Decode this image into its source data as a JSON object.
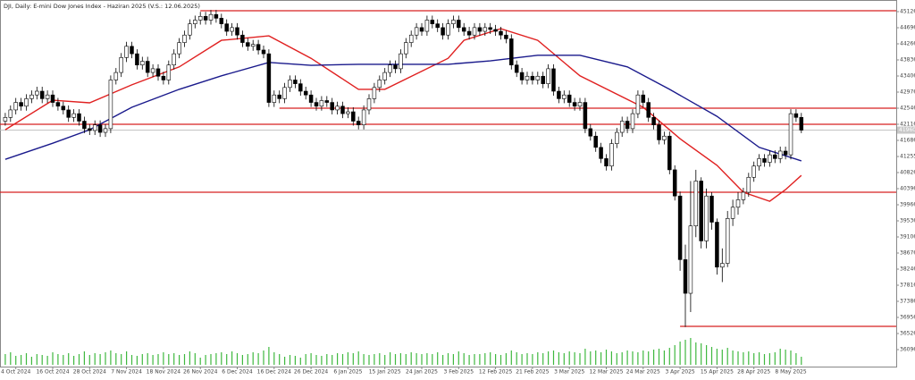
{
  "chart_data": {
    "type": "candlestick",
    "title": "DJI, Daily:  E-mini Dow Jones Index  - Haziran 2025 (V.S.: 12.06.2025)",
    "xlim": [
      -1,
      169
    ],
    "xticks": [
      {
        "value": 2,
        "label": "4 Oct 2024"
      },
      {
        "value": 9,
        "label": "16 Oct 2024"
      },
      {
        "value": 16,
        "label": "28 Oct 2024"
      },
      {
        "value": 23,
        "label": "7 Nov 2024"
      },
      {
        "value": 30,
        "label": "18 Nov 2024"
      },
      {
        "value": 37,
        "label": "26 Nov 2024"
      },
      {
        "value": 44,
        "label": "6 Dec 2024"
      },
      {
        "value": 51,
        "label": "16 Dec 2024"
      },
      {
        "value": 58,
        "label": "26 Dec 2024"
      },
      {
        "value": 65,
        "label": "6 Jan 2025"
      },
      {
        "value": 72,
        "label": "15 Jan 2025"
      },
      {
        "value": 79,
        "label": "24 Jan 2025"
      },
      {
        "value": 86,
        "label": "3 Feb 2025"
      },
      {
        "value": 93,
        "label": "12 Feb 2025"
      },
      {
        "value": 100,
        "label": "21 Feb 2025"
      },
      {
        "value": 107,
        "label": "3 Mar 2025"
      },
      {
        "value": 114,
        "label": "12 Mar 2025"
      },
      {
        "value": 121,
        "label": "24 Mar 2025"
      },
      {
        "value": 128,
        "label": "3 Apr 2025"
      },
      {
        "value": 135,
        "label": "15 Apr 2025"
      },
      {
        "value": 142,
        "label": "28 Apr 2025"
      },
      {
        "value": 149,
        "label": "8 May 2025"
      }
    ],
    "ylim": [
      35642,
      45437
    ],
    "yticks": [
      45126,
      44696,
      44266,
      43836,
      43406,
      42976,
      42546,
      42116,
      41686,
      41255,
      40826,
      40396,
      39966,
      39536,
      39106,
      38676,
      38246,
      37816,
      37386,
      36956,
      36526,
      36096
    ],
    "open": [
      42200,
      42300,
      42500,
      42700,
      42600,
      42800,
      42900,
      43000,
      42800,
      42900,
      42700,
      42600,
      42500,
      42300,
      42400,
      42200,
      42000,
      41950,
      42100,
      41900,
      42000,
      43300,
      43500,
      43900,
      44200,
      44000,
      43700,
      43800,
      43500,
      43600,
      43400,
      43300,
      43700,
      44000,
      44300,
      44500,
      44800,
      44900,
      45000,
      44900,
      45050,
      44950,
      44800,
      44600,
      44700,
      44500,
      44300,
      44200,
      44250,
      44100,
      44000,
      42700,
      42900,
      42800,
      43100,
      43300,
      43200,
      43000,
      42900,
      42700,
      42600,
      42750,
      42700,
      42500,
      42600,
      42400,
      42450,
      42200,
      42100,
      42500,
      42800,
      43100,
      43300,
      43500,
      43700,
      43600,
      44000,
      44300,
      44500,
      44700,
      44600,
      44900,
      44800,
      44700,
      44500,
      44800,
      44900,
      44700,
      44600,
      44500,
      44700,
      44600,
      44700,
      44650,
      44600,
      44500,
      44400,
      43700,
      43500,
      43300,
      43400,
      43300,
      43400,
      43200,
      43600,
      43000,
      42800,
      42900,
      42700,
      42600,
      42700,
      42000,
      41800,
      41500,
      41200,
      41000,
      41600,
      41900,
      42200,
      42000,
      42400,
      42900,
      42700,
      42300,
      42100,
      41700,
      41800,
      40900,
      40200,
      38500,
      37600,
      39400,
      40600,
      39000,
      40200,
      39500,
      38300,
      38400,
      39600,
      39900,
      40100,
      40300,
      40700,
      41000,
      41200,
      41100,
      41300,
      41200,
      41400,
      41300,
      42400,
      42300
    ],
    "high": [
      42420,
      42620,
      42820,
      42820,
      42920,
      43020,
      43120,
      43120,
      43020,
      43020,
      42820,
      42720,
      42620,
      42520,
      42520,
      42320,
      42120,
      42220,
      42220,
      42120,
      43420,
      43620,
      44020,
      44320,
      44320,
      44120,
      43920,
      43920,
      43720,
      43720,
      43520,
      43820,
      44120,
      44420,
      44620,
      44920,
      45020,
      45120,
      45120,
      45170,
      45170,
      45070,
      44920,
      44820,
      44820,
      44620,
      44420,
      44370,
      44370,
      44220,
      44120,
      43020,
      43020,
      43220,
      43420,
      43420,
      43320,
      43120,
      43020,
      42820,
      42870,
      42870,
      42820,
      42720,
      42720,
      42570,
      42570,
      42320,
      42620,
      42920,
      43220,
      43420,
      43620,
      43820,
      43820,
      44120,
      44420,
      44620,
      44820,
      44820,
      45020,
      45020,
      44920,
      44820,
      44920,
      45020,
      45020,
      44820,
      44720,
      44820,
      44820,
      44820,
      44820,
      44770,
      44720,
      44620,
      44520,
      43820,
      43620,
      43520,
      43520,
      43520,
      43520,
      43720,
      43720,
      43120,
      43020,
      43020,
      42820,
      42820,
      42820,
      42120,
      41920,
      41620,
      41320,
      41720,
      42020,
      42320,
      42320,
      42520,
      43020,
      43020,
      42820,
      42420,
      42220,
      41920,
      41920,
      41020,
      40320,
      38900,
      40600,
      40900,
      40700,
      40400,
      40300,
      39600,
      38800,
      39800,
      40100,
      40300,
      40420,
      40820,
      41120,
      41320,
      41320,
      41420,
      41420,
      41520,
      41520,
      42520,
      42520,
      42420
    ],
    "low": [
      42080,
      42180,
      42380,
      42480,
      42480,
      42680,
      42780,
      42680,
      42680,
      42580,
      42480,
      42380,
      42180,
      42180,
      42080,
      41880,
      41830,
      41830,
      41780,
      41780,
      41880,
      43180,
      43380,
      43780,
      43880,
      43580,
      43580,
      43380,
      43380,
      43280,
      43180,
      43180,
      43580,
      43880,
      44180,
      44380,
      44680,
      44780,
      44780,
      44780,
      44830,
      44680,
      44480,
      44480,
      44380,
      44180,
      44080,
      44080,
      43980,
      43880,
      42580,
      42580,
      42680,
      42680,
      42980,
      43080,
      42880,
      42780,
      42580,
      42480,
      42480,
      42580,
      42380,
      42380,
      42280,
      42280,
      42080,
      41980,
      41980,
      42380,
      42680,
      42980,
      43180,
      43380,
      43480,
      43480,
      43880,
      44180,
      44380,
      44480,
      44480,
      44680,
      44580,
      44380,
      44380,
      44680,
      44580,
      44480,
      44380,
      44380,
      44480,
      44480,
      44530,
      44480,
      44380,
      44280,
      43580,
      43380,
      43180,
      43180,
      43180,
      43180,
      43080,
      43080,
      42880,
      42680,
      42680,
      42580,
      42480,
      42480,
      41880,
      41680,
      41380,
      41080,
      40880,
      40880,
      41480,
      41780,
      41880,
      41880,
      42280,
      42580,
      42180,
      41980,
      41580,
      41580,
      40780,
      40080,
      38200,
      36700,
      37100,
      39100,
      38800,
      38800,
      39300,
      38100,
      37900,
      38300,
      39400,
      39700,
      39980,
      40180,
      40580,
      40880,
      40980,
      40980,
      41080,
      41080,
      41180,
      41180,
      42180,
      41880
    ],
    "close": [
      42300,
      42500,
      42700,
      42600,
      42800,
      42900,
      43000,
      42800,
      42900,
      42700,
      42600,
      42500,
      42300,
      42400,
      42200,
      42000,
      41950,
      42100,
      41900,
      42000,
      43300,
      43500,
      43900,
      44200,
      44000,
      43700,
      43800,
      43500,
      43600,
      43400,
      43300,
      43700,
      44000,
      44300,
      44500,
      44800,
      44900,
      45000,
      44900,
      45050,
      44950,
      44800,
      44600,
      44700,
      44500,
      44300,
      44200,
      44250,
      44100,
      44000,
      42700,
      42900,
      42800,
      43100,
      43300,
      43200,
      43000,
      42900,
      42700,
      42600,
      42750,
      42700,
      42500,
      42600,
      42400,
      42450,
      42200,
      42100,
      42500,
      42800,
      43100,
      43300,
      43500,
      43700,
      43600,
      44000,
      44300,
      44500,
      44700,
      44600,
      44900,
      44800,
      44700,
      44500,
      44800,
      44900,
      44700,
      44600,
      44500,
      44700,
      44600,
      44700,
      44650,
      44600,
      44500,
      44400,
      43700,
      43500,
      43300,
      43400,
      43300,
      43400,
      43200,
      43600,
      43000,
      42800,
      42900,
      42700,
      42600,
      42700,
      42000,
      41800,
      41500,
      41200,
      41000,
      41600,
      41900,
      42200,
      42000,
      42400,
      42900,
      42700,
      42300,
      42100,
      41700,
      41800,
      40900,
      40200,
      38500,
      37600,
      39400,
      40600,
      39000,
      40200,
      39500,
      38300,
      38400,
      39600,
      39900,
      40100,
      40300,
      40700,
      41000,
      41200,
      41100,
      41300,
      41200,
      41400,
      41300,
      42400,
      42300,
      41960
    ],
    "volume": [
      12,
      14,
      10,
      11,
      13,
      9,
      12,
      11,
      10,
      14,
      12,
      11,
      13,
      10,
      12,
      15,
      11,
      13,
      12,
      14,
      16,
      13,
      12,
      15,
      11,
      10,
      12,
      13,
      11,
      12,
      14,
      12,
      13,
      11,
      12,
      15,
      13,
      8,
      11,
      12,
      13,
      14,
      12,
      15,
      13,
      11,
      12,
      14,
      13,
      16,
      20,
      14,
      12,
      9,
      11,
      10,
      8,
      12,
      13,
      11,
      10,
      12,
      11,
      13,
      12,
      14,
      13,
      15,
      12,
      11,
      12,
      13,
      11,
      14,
      12,
      13,
      12,
      14,
      13,
      12,
      13,
      12,
      14,
      11,
      13,
      12,
      15,
      13,
      11,
      12,
      12,
      13,
      14,
      12,
      11,
      13,
      16,
      14,
      12,
      13,
      12,
      14,
      13,
      15,
      16,
      14,
      13,
      15,
      14,
      13,
      18,
      15,
      16,
      14,
      17,
      15,
      13,
      14,
      16,
      15,
      14,
      16,
      15,
      17,
      18,
      16,
      19,
      22,
      26,
      28,
      30,
      25,
      24,
      22,
      20,
      18,
      17,
      19,
      16,
      15,
      14,
      15,
      13,
      14,
      12,
      13,
      14,
      18,
      17,
      16,
      13,
      9
    ],
    "volume_color": "#3fb83f",
    "up_color": "#ffffff",
    "down_color": "#000000",
    "ma": [
      {
        "color": "#e02020",
        "x": [
          0,
          9,
          16,
          24,
          33,
          41,
          50,
          58,
          67,
          72,
          84,
          87,
          94,
          101,
          109,
          121,
          128,
          135,
          140,
          145,
          148,
          151
        ],
        "values": [
          41970,
          42760,
          42690,
          43170,
          43650,
          44360,
          44480,
          43880,
          43050,
          43050,
          43880,
          44360,
          44670,
          44360,
          43410,
          42570,
          41730,
          41020,
          40300,
          40060,
          40370,
          40750
        ]
      },
      {
        "color": "#1a1a8c",
        "x": [
          0,
          9,
          16,
          24,
          33,
          41,
          50,
          58,
          67,
          75,
          84,
          92,
          101,
          109,
          118,
          126,
          135,
          143,
          151
        ],
        "values": [
          41180,
          41610,
          41970,
          42570,
          43050,
          43410,
          43770,
          43690,
          43720,
          43720,
          43720,
          43810,
          43960,
          43960,
          43650,
          43050,
          42330,
          41500,
          41140
        ]
      }
    ],
    "levels": [
      {
        "value": 45150,
        "start": 37,
        "color": "#d62020"
      },
      {
        "value": 42546,
        "start": 52,
        "color": "#d62020"
      },
      {
        "value": 42116,
        "start": -1,
        "color": "#d62020"
      },
      {
        "value": 40300,
        "start": -1,
        "color": "#d62020"
      },
      {
        "value": 36717,
        "start": 128,
        "color": "#d62020"
      }
    ]
  }
}
